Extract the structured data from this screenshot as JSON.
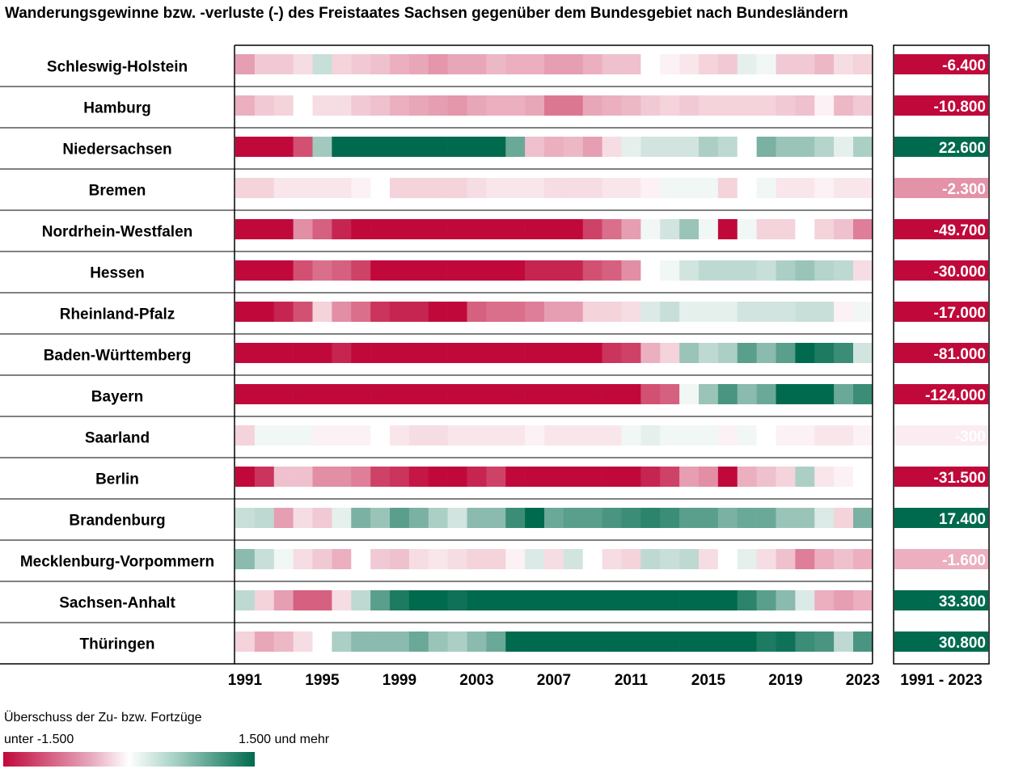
{
  "title": "Wanderungsgewinne bzw. -verluste (-) des Freistaates Sachsen gegenüber dem Bundesgebiet nach Bundesländern",
  "legend": {
    "title": "Überschuss der Zu- bzw. Fortzüge",
    "low_label": "unter -1.500",
    "high_label": "1.500 und mehr",
    "color_low": "#c0093a",
    "color_mid": "#ffffff",
    "color_high": "#006a4e",
    "scale_min": -1500,
    "scale_max": 1500
  },
  "chart_data": {
    "type": "heatmap",
    "title": "Wanderungsgewinne bzw. -verluste (-) des Freistaates Sachsen gegenüber dem Bundesgebiet nach Bundesländern",
    "x_tick_labels": [
      "1991",
      "1995",
      "1999",
      "2003",
      "2007",
      "2011",
      "2015",
      "2019",
      "2023"
    ],
    "years": [
      1991,
      1992,
      1993,
      1994,
      1995,
      1996,
      1997,
      1998,
      1999,
      2000,
      2001,
      2002,
      2003,
      2004,
      2005,
      2006,
      2007,
      2008,
      2009,
      2010,
      2011,
      2012,
      2013,
      2014,
      2015,
      2016,
      2017,
      2018,
      2019,
      2020,
      2021,
      2022,
      2023
    ],
    "total_label": "1991 - 2023",
    "rows": [
      {
        "name": "Schleswig-Holstein",
        "total": "-6.400",
        "values": [
          -500,
          -250,
          -250,
          -150,
          250,
          -200,
          -250,
          -300,
          -400,
          -450,
          -550,
          -450,
          -450,
          -350,
          -400,
          -400,
          -500,
          -500,
          -400,
          -300,
          -300,
          0,
          -50,
          -100,
          -200,
          -250,
          100,
          50,
          -250,
          -250,
          -350,
          -150,
          -200
        ]
      },
      {
        "name": "Hamburg",
        "total": "-10.800",
        "values": [
          -400,
          -250,
          -200,
          0,
          -150,
          -150,
          -250,
          -300,
          -400,
          -450,
          -500,
          -550,
          -450,
          -400,
          -400,
          -450,
          -750,
          -750,
          -450,
          -400,
          -350,
          -250,
          -200,
          -250,
          -200,
          -200,
          -200,
          -200,
          -250,
          -300,
          -50,
          -350,
          -250
        ]
      },
      {
        "name": "Niedersachsen",
        "total": "22.600",
        "values": [
          -1600,
          -1600,
          -1600,
          -1000,
          450,
          1500,
          1500,
          1500,
          1500,
          1500,
          1500,
          1500,
          1500,
          1500,
          800,
          -300,
          -400,
          -350,
          -500,
          -150,
          100,
          200,
          200,
          200,
          400,
          300,
          0,
          700,
          500,
          500,
          350,
          100,
          400
        ]
      },
      {
        "name": "Bremen",
        "total": "-2.300",
        "values": [
          -200,
          -200,
          -100,
          -100,
          -100,
          -100,
          -50,
          0,
          -200,
          -200,
          -200,
          -200,
          -150,
          -100,
          -100,
          -100,
          -150,
          -150,
          -150,
          -100,
          -100,
          -50,
          50,
          50,
          50,
          -200,
          0,
          50,
          -100,
          -100,
          -50,
          -100,
          -100
        ]
      },
      {
        "name": "Nordrhein-Westfalen",
        "total": "-49.700",
        "values": [
          -1600,
          -1600,
          -1600,
          -600,
          -900,
          -1300,
          -1500,
          -1500,
          -1500,
          -1500,
          -1500,
          -1500,
          -1500,
          -1500,
          -1500,
          -1500,
          -1500,
          -1500,
          -1100,
          -800,
          -500,
          50,
          200,
          500,
          50,
          -1600,
          50,
          -200,
          -200,
          0,
          -200,
          -300,
          -700
        ]
      },
      {
        "name": "Hessen",
        "total": "-30.000",
        "values": [
          -1600,
          -1600,
          -1600,
          -1000,
          -800,
          -900,
          -1100,
          -1500,
          -1500,
          -1500,
          -1500,
          -1500,
          -1500,
          -1500,
          -1500,
          -1300,
          -1300,
          -1300,
          -1000,
          -900,
          -600,
          0,
          50,
          200,
          300,
          300,
          300,
          250,
          400,
          500,
          350,
          300,
          -150
        ]
      },
      {
        "name": "Rheinland-Pfalz",
        "total": "-17.000",
        "values": [
          -1600,
          -1600,
          -1300,
          -1000,
          -200,
          -600,
          -800,
          -1200,
          -1300,
          -1300,
          -1500,
          -1500,
          -900,
          -800,
          -800,
          -700,
          -500,
          -500,
          -200,
          -200,
          -150,
          150,
          250,
          100,
          100,
          100,
          200,
          200,
          200,
          250,
          250,
          -50,
          50
        ]
      },
      {
        "name": "Baden-Württemberg",
        "total": "-81.000",
        "values": [
          -1600,
          -1600,
          -1600,
          -1600,
          -1600,
          -1300,
          -1500,
          -1500,
          -1500,
          -1500,
          -1500,
          -1500,
          -1500,
          -1500,
          -1500,
          -1500,
          -1500,
          -1500,
          -1500,
          -1200,
          -1100,
          -400,
          -200,
          500,
          300,
          400,
          900,
          600,
          900,
          1600,
          1300,
          1100,
          200
        ]
      },
      {
        "name": "Bayern",
        "total": "-124.000",
        "values": [
          -1600,
          -1600,
          -1600,
          -1600,
          -1600,
          -1600,
          -1600,
          -1600,
          -1600,
          -1600,
          -1600,
          -1600,
          -1600,
          -1600,
          -1600,
          -1600,
          -1600,
          -1600,
          -1600,
          -1600,
          -1600,
          -1000,
          -900,
          50,
          500,
          1000,
          600,
          800,
          1600,
          1600,
          1600,
          800,
          1100
        ]
      },
      {
        "name": "Saarland",
        "total": "-300",
        "values": [
          -200,
          50,
          50,
          50,
          -50,
          -50,
          -50,
          0,
          -100,
          -150,
          -150,
          -100,
          -100,
          -100,
          -100,
          -50,
          -100,
          -100,
          -100,
          -100,
          50,
          100,
          50,
          50,
          50,
          -50,
          50,
          0,
          -50,
          -50,
          -100,
          -100,
          -50
        ]
      },
      {
        "name": "Berlin",
        "total": "-31.500",
        "values": [
          -1600,
          -1200,
          -300,
          -300,
          -600,
          -600,
          -700,
          -1100,
          -1200,
          -1400,
          -1500,
          -1500,
          -1300,
          -1100,
          -1500,
          -1500,
          -1500,
          -1500,
          -1500,
          -1500,
          -1500,
          -1300,
          -1100,
          -500,
          -600,
          -1500,
          -400,
          -300,
          -200,
          400,
          -100,
          -50,
          0
        ]
      },
      {
        "name": "Brandenburg",
        "total": "17.400",
        "values": [
          250,
          300,
          -500,
          -150,
          -250,
          100,
          700,
          500,
          900,
          700,
          400,
          200,
          600,
          600,
          1100,
          1600,
          800,
          900,
          900,
          1000,
          1100,
          1200,
          1100,
          900,
          900,
          700,
          800,
          800,
          500,
          500,
          150,
          -200,
          700
        ]
      },
      {
        "name": "Mecklenburg-Vorpommern",
        "total": "-1.600",
        "values": [
          600,
          250,
          50,
          -150,
          -250,
          -400,
          0,
          -250,
          -300,
          -150,
          -100,
          -150,
          -200,
          -200,
          -50,
          150,
          -150,
          200,
          0,
          -150,
          -200,
          300,
          250,
          300,
          -150,
          0,
          100,
          -150,
          -300,
          -700,
          -400,
          -300,
          -400
        ]
      },
      {
        "name": "Sachsen-Anhalt",
        "total": "33.300",
        "values": [
          300,
          -200,
          -500,
          -900,
          -900,
          -150,
          300,
          900,
          1300,
          1500,
          1500,
          1400,
          1500,
          1500,
          1500,
          1500,
          1500,
          1500,
          1500,
          1500,
          1500,
          1500,
          1500,
          1500,
          1500,
          1500,
          1200,
          900,
          600,
          150,
          -400,
          -500,
          -400
        ]
      },
      {
        "name": "Thüringen",
        "total": "30.800",
        "values": [
          -200,
          -450,
          -350,
          -150,
          0,
          400,
          600,
          600,
          600,
          800,
          500,
          400,
          600,
          800,
          1600,
          1600,
          1600,
          1600,
          1500,
          1500,
          1600,
          1600,
          1600,
          1600,
          1600,
          1600,
          1600,
          1300,
          1400,
          1100,
          1000,
          300,
          1000
        ]
      }
    ]
  }
}
